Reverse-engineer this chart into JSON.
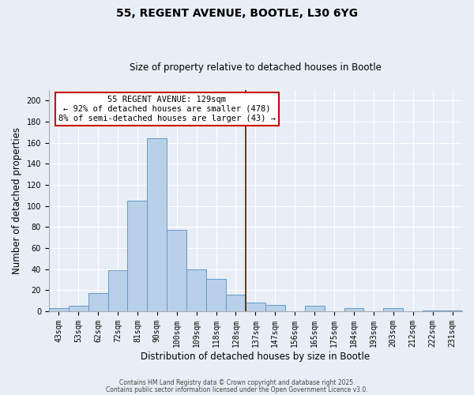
{
  "title": "55, REGENT AVENUE, BOOTLE, L30 6YG",
  "subtitle": "Size of property relative to detached houses in Bootle",
  "xlabel": "Distribution of detached houses by size in Bootle",
  "ylabel": "Number of detached properties",
  "bar_labels": [
    "43sqm",
    "53sqm",
    "62sqm",
    "72sqm",
    "81sqm",
    "90sqm",
    "100sqm",
    "109sqm",
    "118sqm",
    "128sqm",
    "137sqm",
    "147sqm",
    "156sqm",
    "165sqm",
    "175sqm",
    "184sqm",
    "193sqm",
    "203sqm",
    "212sqm",
    "222sqm",
    "231sqm"
  ],
  "bar_values": [
    3,
    5,
    17,
    39,
    105,
    164,
    77,
    40,
    31,
    16,
    8,
    6,
    0,
    5,
    0,
    3,
    0,
    3,
    0,
    1,
    1
  ],
  "bar_color": "#b8d0e8",
  "bar_edge_color": "#6699cc",
  "ylim": [
    0,
    210
  ],
  "yticks": [
    0,
    20,
    40,
    60,
    80,
    100,
    120,
    140,
    160,
    180,
    200
  ],
  "vline_color": "#8b0000",
  "annotation_line1": "55 REGENT AVENUE: 129sqm",
  "annotation_line2": "← 92% of detached houses are smaller (478)",
  "annotation_line3": "8% of semi-detached houses are larger (43) →",
  "annotation_box_color": "#ffffff",
  "annotation_box_edge_color": "#cc0000",
  "footer1": "Contains HM Land Registry data © Crown copyright and database right 2025.",
  "footer2": "Contains public sector information licensed under the Open Government Licence v3.0.",
  "bg_color": "#e8eef5",
  "grid_color": "#ffffff",
  "title_fontsize": 10,
  "subtitle_fontsize": 8.5,
  "tick_fontsize": 7,
  "label_fontsize": 8.5,
  "annotation_fontsize": 7.5,
  "footer_fontsize": 5.5
}
